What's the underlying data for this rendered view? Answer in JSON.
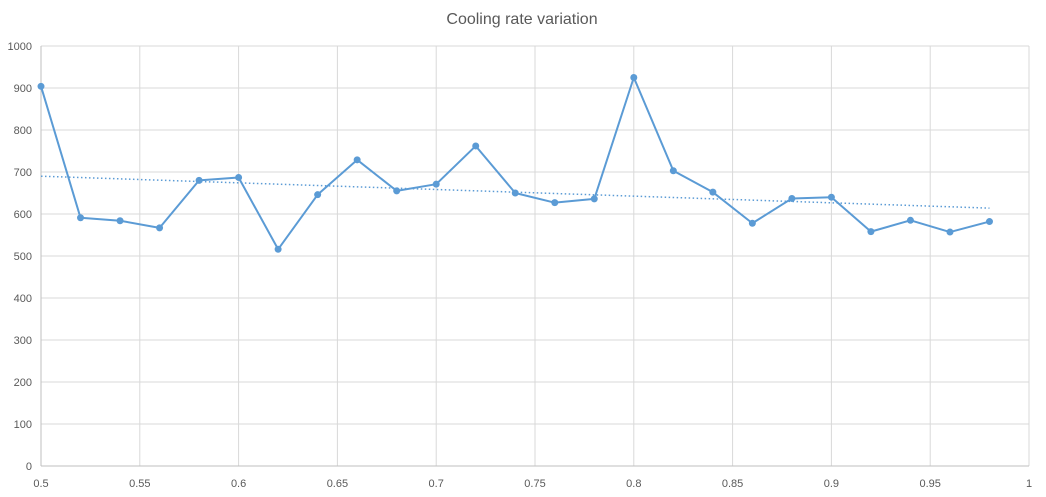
{
  "chart_data": {
    "type": "line",
    "title": "Cooling rate variation",
    "xlabel": "",
    "ylabel": "",
    "xlim": [
      0.5,
      1
    ],
    "ylim": [
      0,
      1000
    ],
    "x_ticks": [
      "0.5",
      "0.55",
      "0.6",
      "0.65",
      "0.7",
      "0.75",
      "0.8",
      "0.85",
      "0.9",
      "0.95",
      "1"
    ],
    "y_ticks": [
      "0",
      "100",
      "200",
      "300",
      "400",
      "500",
      "600",
      "700",
      "800",
      "900",
      "1000"
    ],
    "grid": true,
    "legend": "none",
    "series": [
      {
        "color": "#5b9bd5",
        "marker": "circle",
        "points": [
          {
            "x": 0.5,
            "y": 904
          },
          {
            "x": 0.52,
            "y": 591
          },
          {
            "x": 0.54,
            "y": 584
          },
          {
            "x": 0.56,
            "y": 567
          },
          {
            "x": 0.58,
            "y": 680
          },
          {
            "x": 0.6,
            "y": 687
          },
          {
            "x": 0.62,
            "y": 516
          },
          {
            "x": 0.64,
            "y": 646
          },
          {
            "x": 0.66,
            "y": 729
          },
          {
            "x": 0.68,
            "y": 655
          },
          {
            "x": 0.7,
            "y": 671
          },
          {
            "x": 0.72,
            "y": 762
          },
          {
            "x": 0.74,
            "y": 650
          },
          {
            "x": 0.76,
            "y": 627
          },
          {
            "x": 0.78,
            "y": 636
          },
          {
            "x": 0.8,
            "y": 925
          },
          {
            "x": 0.82,
            "y": 703
          },
          {
            "x": 0.84,
            "y": 652
          },
          {
            "x": 0.86,
            "y": 578
          },
          {
            "x": 0.88,
            "y": 637
          },
          {
            "x": 0.9,
            "y": 640
          },
          {
            "x": 0.92,
            "y": 558
          },
          {
            "x": 0.94,
            "y": 585
          },
          {
            "x": 0.96,
            "y": 557
          },
          {
            "x": 0.98,
            "y": 582
          }
        ]
      }
    ],
    "trendline": {
      "type": "linear",
      "style": "dotted",
      "color": "#5b9bd5",
      "points": [
        {
          "x": 0.5,
          "y": 690
        },
        {
          "x": 0.98,
          "y": 614
        }
      ]
    }
  }
}
